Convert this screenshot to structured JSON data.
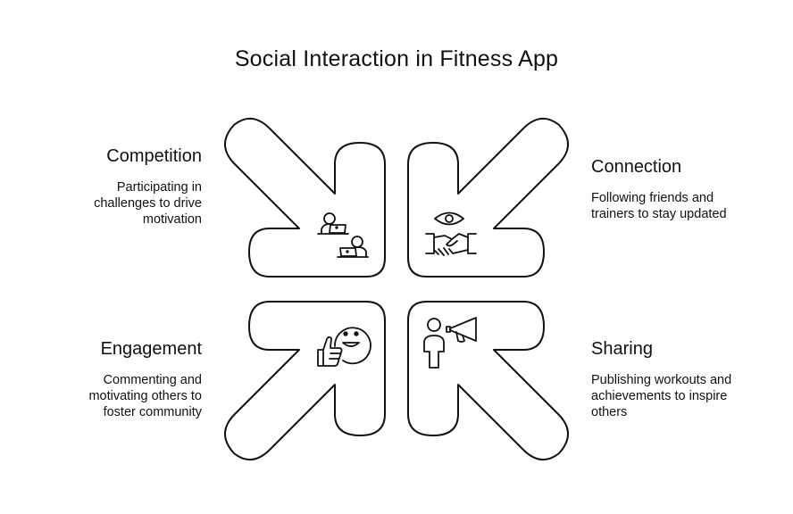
{
  "title": "Social Interaction in Fitness App",
  "quadrants": [
    {
      "heading": "Competition",
      "description": "Participating in challenges to drive motivation",
      "icon": "people-with-laptops-icon"
    },
    {
      "heading": "Connection",
      "description": "Following friends and trainers to stay updated",
      "icon": "eye-handshake-icon"
    },
    {
      "heading": "Engagement",
      "description": "Commenting and motivating others to foster community",
      "icon": "smile-thumbs-up-icon"
    },
    {
      "heading": "Sharing",
      "description": "Publishing workouts and achievements to inspire others",
      "icon": "person-megaphone-icon"
    }
  ],
  "colors": {
    "stroke": "#111111",
    "background": "#ffffff"
  }
}
